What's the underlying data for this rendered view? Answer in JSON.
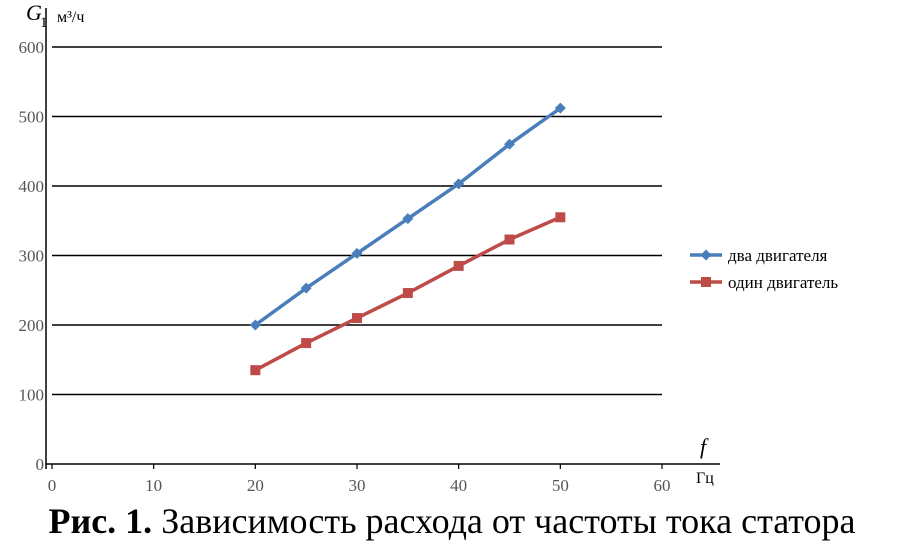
{
  "chart_data": {
    "type": "line",
    "x": [
      20,
      25,
      30,
      35,
      40,
      45,
      50
    ],
    "series": [
      {
        "name": "два двигателя",
        "values": [
          200,
          253,
          303,
          353,
          403,
          460,
          512
        ],
        "color": "#4a7ebb",
        "marker": "diamond"
      },
      {
        "name": "один двигатель",
        "values": [
          135,
          174,
          210,
          246,
          285,
          323,
          355
        ],
        "color": "#be4b48",
        "marker": "square"
      }
    ],
    "xlim": [
      0,
      60
    ],
    "ylim": [
      0,
      600
    ],
    "xticks": [
      0,
      10,
      20,
      30,
      40,
      50,
      60
    ],
    "yticks": [
      0,
      100,
      200,
      300,
      400,
      500,
      600
    ],
    "grid": "horizontal",
    "legend": "right",
    "ylabel_symbol": "G",
    "ylabel_subscript": "1",
    "ylabel_unit": "м³/ч",
    "xlabel_symbol": "f",
    "xlabel_unit": "Гц"
  },
  "caption": {
    "label": "Рис. 1.",
    "text": " Зависимость расхода от частоты тока статора"
  }
}
